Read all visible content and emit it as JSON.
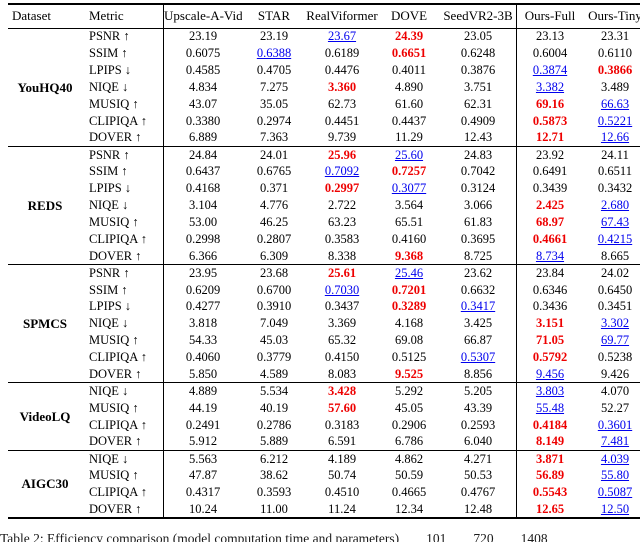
{
  "colors": {
    "best": "#ee0000",
    "second": "#0000ee",
    "text": "#000000",
    "rule": "#000000"
  },
  "legend": {
    "best_meaning": "best result (red bold)",
    "second_meaning": "second best result (blue underlined)"
  },
  "caption": "Table 2: Efficiency comparison (model computation time and parameters)        101        720        1408",
  "table": {
    "columns": [
      "Dataset",
      "Metric",
      "Upscale-A-Video",
      "STAR",
      "RealViformer",
      "DOVE",
      "SeedVR2-3B",
      "Ours-Full",
      "Ours-Tiny"
    ],
    "groups": [
      {
        "dataset": "YouHQ40",
        "rows": [
          {
            "metric": "PSNR",
            "arrow": "↑",
            "values": [
              "23.19",
              "23.19",
              {
                "v": "23.67",
                "s": "second"
              },
              {
                "v": "24.39",
                "s": "best"
              },
              "23.05",
              "23.13",
              "23.31"
            ]
          },
          {
            "metric": "SSIM",
            "arrow": "↑",
            "values": [
              "0.6075",
              {
                "v": "0.6388",
                "s": "second"
              },
              "0.6189",
              {
                "v": "0.6651",
                "s": "best"
              },
              "0.6248",
              "0.6004",
              "0.6110"
            ]
          },
          {
            "metric": "LPIPS",
            "arrow": "↓",
            "values": [
              "0.4585",
              "0.4705",
              "0.4476",
              "0.4011",
              "0.3876",
              {
                "v": "0.3874",
                "s": "second"
              },
              {
                "v": "0.3866",
                "s": "best"
              }
            ]
          },
          {
            "metric": "NIQE",
            "arrow": "↓",
            "values": [
              "4.834",
              "7.275",
              {
                "v": "3.360",
                "s": "best"
              },
              "4.890",
              "3.751",
              {
                "v": "3.382",
                "s": "second"
              },
              "3.489"
            ]
          },
          {
            "metric": "MUSIQ",
            "arrow": "↑",
            "values": [
              "43.07",
              "35.05",
              "62.73",
              "61.60",
              "62.31",
              {
                "v": "69.16",
                "s": "best"
              },
              {
                "v": "66.63",
                "s": "second"
              }
            ]
          },
          {
            "metric": "CLIPIQA",
            "arrow": "↑",
            "values": [
              "0.3380",
              "0.2974",
              "0.4451",
              "0.4437",
              "0.4909",
              {
                "v": "0.5873",
                "s": "best"
              },
              {
                "v": "0.5221",
                "s": "second"
              }
            ]
          },
          {
            "metric": "DOVER",
            "arrow": "↑",
            "values": [
              "6.889",
              "7.363",
              "9.739",
              "11.29",
              "12.43",
              {
                "v": "12.71",
                "s": "best"
              },
              {
                "v": "12.66",
                "s": "second"
              }
            ]
          }
        ]
      },
      {
        "dataset": "REDS",
        "rows": [
          {
            "metric": "PSNR",
            "arrow": "↑",
            "values": [
              "24.84",
              "24.01",
              {
                "v": "25.96",
                "s": "best"
              },
              {
                "v": "25.60",
                "s": "second"
              },
              "24.83",
              "23.92",
              "24.11"
            ]
          },
          {
            "metric": "SSIM",
            "arrow": "↑",
            "values": [
              "0.6437",
              "0.6765",
              {
                "v": "0.7092",
                "s": "second"
              },
              {
                "v": "0.7257",
                "s": "best"
              },
              "0.7042",
              "0.6491",
              "0.6511"
            ]
          },
          {
            "metric": "LPIPS",
            "arrow": "↓",
            "values": [
              "0.4168",
              "0.371",
              {
                "v": "0.2997",
                "s": "best"
              },
              {
                "v": "0.3077",
                "s": "second"
              },
              "0.3124",
              "0.3439",
              "0.3432"
            ]
          },
          {
            "metric": "NIQE",
            "arrow": "↓",
            "values": [
              "3.104",
              "4.776",
              "2.722",
              "3.564",
              "3.066",
              {
                "v": "2.425",
                "s": "best"
              },
              {
                "v": "2.680",
                "s": "second"
              }
            ]
          },
          {
            "metric": "MUSIQ",
            "arrow": "↑",
            "values": [
              "53.00",
              "46.25",
              "63.23",
              "65.51",
              "61.83",
              {
                "v": "68.97",
                "s": "best"
              },
              {
                "v": "67.43",
                "s": "second"
              }
            ]
          },
          {
            "metric": "CLIPIQA",
            "arrow": "↑",
            "values": [
              "0.2998",
              "0.2807",
              "0.3583",
              "0.4160",
              "0.3695",
              {
                "v": "0.4661",
                "s": "best"
              },
              {
                "v": "0.4215",
                "s": "second"
              }
            ]
          },
          {
            "metric": "DOVER",
            "arrow": "↑",
            "values": [
              "6.366",
              "6.309",
              "8.338",
              {
                "v": "9.368",
                "s": "best"
              },
              "8.725",
              {
                "v": "8.734",
                "s": "second"
              },
              "8.665"
            ]
          }
        ]
      },
      {
        "dataset": "SPMCS",
        "rows": [
          {
            "metric": "PSNR",
            "arrow": "↑",
            "values": [
              "23.95",
              "23.68",
              {
                "v": "25.61",
                "s": "best"
              },
              {
                "v": "25.46",
                "s": "second"
              },
              "23.62",
              "23.84",
              "24.02"
            ]
          },
          {
            "metric": "SSIM",
            "arrow": "↑",
            "values": [
              "0.6209",
              "0.6700",
              {
                "v": "0.7030",
                "s": "second"
              },
              {
                "v": "0.7201",
                "s": "best"
              },
              "0.6632",
              "0.6346",
              "0.6450"
            ]
          },
          {
            "metric": "LPIPS",
            "arrow": "↓",
            "values": [
              "0.4277",
              "0.3910",
              "0.3437",
              {
                "v": "0.3289",
                "s": "best"
              },
              {
                "v": "0.3417",
                "s": "second"
              },
              "0.3436",
              "0.3451"
            ]
          },
          {
            "metric": "NIQE",
            "arrow": "↓",
            "values": [
              "3.818",
              "7.049",
              "3.369",
              "4.168",
              "3.425",
              {
                "v": "3.151",
                "s": "best"
              },
              {
                "v": "3.302",
                "s": "second"
              }
            ]
          },
          {
            "metric": "MUSIQ",
            "arrow": "↑",
            "values": [
              "54.33",
              "45.03",
              "65.32",
              "69.08",
              "66.87",
              {
                "v": "71.05",
                "s": "best"
              },
              {
                "v": "69.77",
                "s": "second"
              }
            ]
          },
          {
            "metric": "CLIPIQA",
            "arrow": "↑",
            "values": [
              "0.4060",
              "0.3779",
              "0.4150",
              "0.5125",
              {
                "v": "0.5307",
                "s": "second"
              },
              {
                "v": "0.5792",
                "s": "best"
              },
              "0.5238"
            ]
          },
          {
            "metric": "DOVER",
            "arrow": "↑",
            "values": [
              "5.850",
              "4.589",
              "8.083",
              {
                "v": "9.525",
                "s": "best"
              },
              "8.856",
              {
                "v": "9.456",
                "s": "second"
              },
              "9.426"
            ]
          }
        ]
      },
      {
        "dataset": "VideoLQ",
        "rows": [
          {
            "metric": "NIQE",
            "arrow": "↓",
            "values": [
              "4.889",
              "5.534",
              {
                "v": "3.428",
                "s": "best"
              },
              "5.292",
              "5.205",
              {
                "v": "3.803",
                "s": "second"
              },
              "4.070"
            ]
          },
          {
            "metric": "MUSIQ",
            "arrow": "↑",
            "values": [
              "44.19",
              "40.19",
              {
                "v": "57.60",
                "s": "best"
              },
              "45.05",
              "43.39",
              {
                "v": "55.48",
                "s": "second"
              },
              "52.27"
            ]
          },
          {
            "metric": "CLIPIQA",
            "arrow": "↑",
            "values": [
              "0.2491",
              "0.2786",
              "0.3183",
              "0.2906",
              "0.2593",
              {
                "v": "0.4184",
                "s": "best"
              },
              {
                "v": "0.3601",
                "s": "second"
              }
            ]
          },
          {
            "metric": "DOVER",
            "arrow": "↑",
            "values": [
              "5.912",
              "5.889",
              "6.591",
              "6.786",
              "6.040",
              {
                "v": "8.149",
                "s": "best"
              },
              {
                "v": "7.481",
                "s": "second"
              }
            ]
          }
        ]
      },
      {
        "dataset": "AIGC30",
        "rows": [
          {
            "metric": "NIQE",
            "arrow": "↓",
            "values": [
              "5.563",
              "6.212",
              "4.189",
              "4.862",
              "4.271",
              {
                "v": "3.871",
                "s": "best"
              },
              {
                "v": "4.039",
                "s": "second"
              }
            ]
          },
          {
            "metric": "MUSIQ",
            "arrow": "↑",
            "values": [
              "47.87",
              "38.62",
              "50.74",
              "50.59",
              "50.53",
              {
                "v": "56.89",
                "s": "best"
              },
              {
                "v": "55.80",
                "s": "second"
              }
            ]
          },
          {
            "metric": "CLIPIQA",
            "arrow": "↑",
            "values": [
              "0.4317",
              "0.3593",
              "0.4510",
              "0.4665",
              "0.4767",
              {
                "v": "0.5543",
                "s": "best"
              },
              {
                "v": "0.5087",
                "s": "second"
              }
            ]
          },
          {
            "metric": "DOVER",
            "arrow": "↑",
            "values": [
              "10.24",
              "11.00",
              "11.24",
              "12.34",
              "12.48",
              {
                "v": "12.65",
                "s": "best"
              },
              {
                "v": "12.50",
                "s": "second"
              }
            ]
          }
        ]
      }
    ]
  }
}
